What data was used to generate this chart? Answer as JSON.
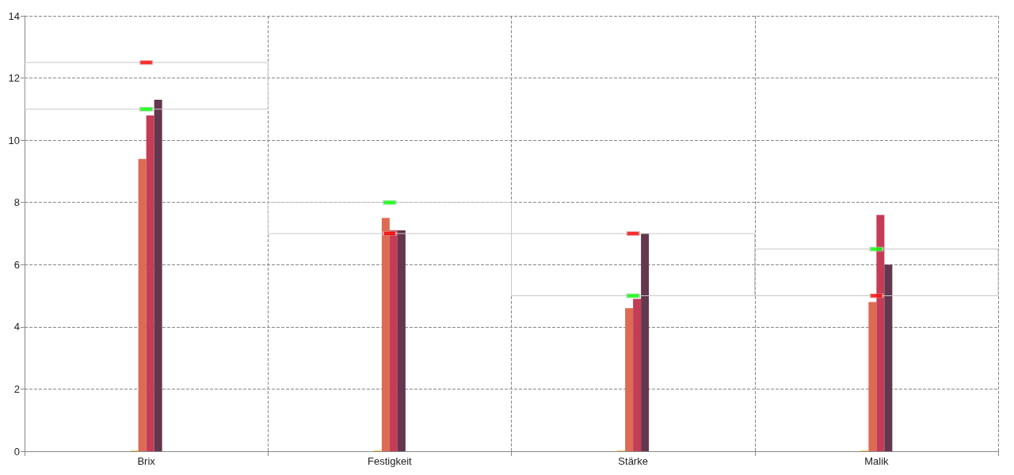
{
  "chart_data": {
    "type": "bar",
    "categories": [
      "Brix",
      "Festigkeit",
      "Stärke",
      "Malik"
    ],
    "series": [
      {
        "type": "bar",
        "color": "#f2d16b",
        "values": [
          0.03,
          0.03,
          0.03,
          0.03
        ]
      },
      {
        "type": "bar",
        "color": "#dd6b53",
        "values": [
          9.4,
          7.5,
          4.6,
          4.8
        ]
      },
      {
        "type": "bar",
        "color": "#c43c55",
        "values": [
          10.8,
          7.1,
          4.9,
          7.6
        ]
      },
      {
        "type": "bar",
        "color": "#63374d",
        "values": [
          11.3,
          7.1,
          7.0,
          6.0
        ]
      },
      {
        "type": "bar",
        "color": "#c8c8c8",
        "base": [
          11,
          7,
          5,
          5
        ],
        "values": [
          1.5,
          1,
          2,
          1.5
        ]
      },
      {
        "type": "scatter",
        "color": "#ff0000",
        "marker": "square",
        "x": [
          "Brix",
          "Festigkeit",
          "Stärke",
          "Malik"
        ],
        "values": [
          12.5,
          7,
          7,
          5
        ]
      },
      {
        "type": "scatter",
        "color": "#00ff00",
        "marker": "square",
        "x": [
          "Brix",
          "Festigkeit",
          "Stärke",
          "Malik"
        ],
        "values": [
          11,
          8,
          5,
          6.5
        ]
      }
    ],
    "ylim": [
      0,
      14
    ],
    "yticks": [
      0,
      2,
      4,
      6,
      8,
      10,
      12,
      14
    ],
    "grid": true
  }
}
